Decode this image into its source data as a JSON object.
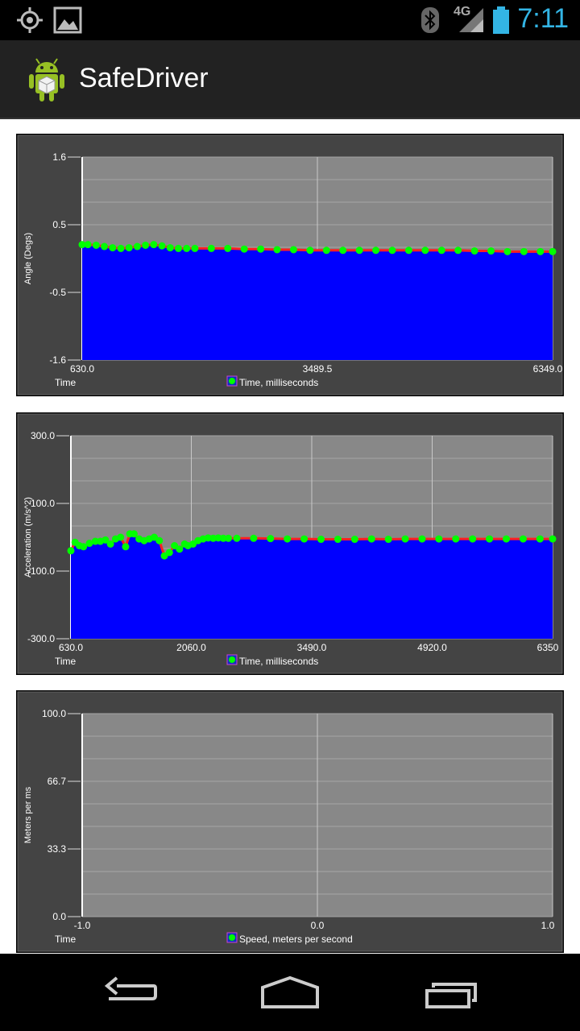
{
  "status_bar": {
    "time": "7:11",
    "network": "4G",
    "icons": [
      "gps-icon",
      "picture-icon",
      "bluetooth-icon",
      "signal-icon",
      "battery-icon"
    ]
  },
  "app_bar": {
    "title": "SafeDriver",
    "icon": "android-icon"
  },
  "colors": {
    "fill": "#0000ff",
    "line": "#ff2020",
    "point": "#00ff00",
    "plot_bg": "#888888",
    "frame_bg": "#444444",
    "accent": "#33b5e5"
  },
  "chart_data": [
    {
      "type": "area",
      "ylabel": "Angle (Degs)",
      "xlabel": "Time",
      "legend": "Time, milliseconds",
      "xlim": [
        630.0,
        6349.0
      ],
      "ylim": [
        -1.6,
        1.6
      ],
      "x_ticks": [
        "630.0",
        "3489.5",
        "6349.0"
      ],
      "y_ticks": [
        "1.6",
        "0.5",
        "-0.5",
        "-1.6"
      ],
      "x": [
        630,
        700,
        800,
        900,
        1000,
        1100,
        1200,
        1300,
        1400,
        1500,
        1600,
        1700,
        1800,
        1900,
        2000,
        2200,
        2400,
        2600,
        2800,
        3000,
        3200,
        3400,
        3600,
        3800,
        4000,
        4200,
        4400,
        4600,
        4800,
        5000,
        5200,
        5400,
        5600,
        5800,
        6000,
        6200,
        6349
      ],
      "y": [
        0.22,
        0.22,
        0.21,
        0.19,
        0.17,
        0.16,
        0.17,
        0.19,
        0.21,
        0.22,
        0.2,
        0.17,
        0.16,
        0.16,
        0.16,
        0.16,
        0.16,
        0.15,
        0.15,
        0.14,
        0.14,
        0.13,
        0.13,
        0.13,
        0.13,
        0.13,
        0.13,
        0.13,
        0.13,
        0.13,
        0.13,
        0.12,
        0.12,
        0.11,
        0.11,
        0.11,
        0.11
      ]
    },
    {
      "type": "area",
      "ylabel": "Acceleration (m/s^2)",
      "xlabel": "Time",
      "legend": "Time, milliseconds",
      "xlim": [
        630.0,
        6350.0
      ],
      "ylim": [
        -300.0,
        300.0
      ],
      "x_ticks": [
        "630.0",
        "2060.0",
        "3490.0",
        "4920.0",
        "6350"
      ],
      "y_ticks": [
        "300.0",
        "100.0",
        "-100.0",
        "-300.0"
      ],
      "x": [
        630,
        680,
        730,
        780,
        850,
        920,
        980,
        1040,
        1100,
        1160,
        1220,
        1280,
        1330,
        1380,
        1440,
        1500,
        1560,
        1620,
        1680,
        1740,
        1800,
        1860,
        1920,
        1980,
        2020,
        2080,
        2140,
        2200,
        2260,
        2320,
        2380,
        2440,
        2500,
        2600,
        2800,
        3000,
        3200,
        3400,
        3600,
        3800,
        4000,
        4200,
        4400,
        4600,
        4800,
        5000,
        5200,
        5400,
        5600,
        5800,
        6000,
        6200,
        6350
      ],
      "y": [
        -40,
        -15,
        -25,
        -28,
        -18,
        -12,
        -12,
        -8,
        -20,
        -5,
        0,
        -28,
        10,
        10,
        -5,
        -10,
        -5,
        0,
        -10,
        -55,
        -45,
        -25,
        -35,
        -20,
        -25,
        -20,
        -10,
        -5,
        -2,
        -3,
        -2,
        -3,
        -3,
        -3,
        -3,
        -4,
        -5,
        -5,
        -6,
        -6,
        -6,
        -5,
        -6,
        -5,
        -5,
        -5,
        -5,
        -5,
        -5,
        -5,
        -5,
        -5,
        -5
      ]
    },
    {
      "type": "line",
      "ylabel": "Meters per ms",
      "xlabel": "Time",
      "legend": "Speed, meters per second",
      "xlim": [
        -1.0,
        1.0
      ],
      "ylim": [
        0.0,
        100.0
      ],
      "x_ticks": [
        "-1.0",
        "0.0",
        "1.0"
      ],
      "y_ticks": [
        "100.0",
        "66.7",
        "33.3",
        "0.0"
      ],
      "x": [],
      "y": []
    }
  ]
}
